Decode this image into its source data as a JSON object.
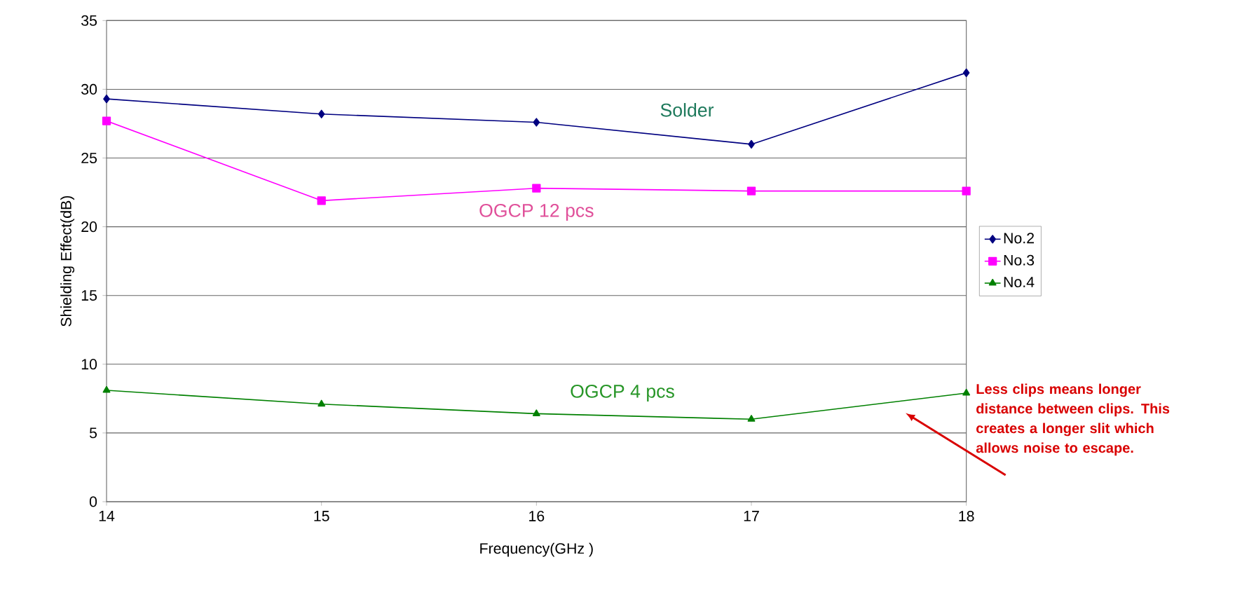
{
  "chart_data": {
    "type": "line",
    "xlabel": "Frequency(GHz )",
    "ylabel": "Shielding Effect(dB)",
    "x": [
      14,
      15,
      16,
      17,
      18
    ],
    "series": [
      {
        "name": "No.2",
        "color": "#000080",
        "marker": "diamond",
        "values": [
          29.3,
          28.2,
          27.6,
          26.0,
          31.2
        ]
      },
      {
        "name": "No.3",
        "color": "#ff00ff",
        "marker": "square",
        "values": [
          27.7,
          21.9,
          22.8,
          22.6,
          22.6
        ]
      },
      {
        "name": "No.4",
        "color": "#008000",
        "marker": "triangle",
        "values": [
          8.1,
          7.1,
          6.4,
          6.0,
          7.9
        ]
      }
    ],
    "xlim": [
      14,
      18
    ],
    "xticks": [
      14,
      15,
      16,
      17,
      18
    ],
    "ylim": [
      0,
      35
    ],
    "yticks": [
      0,
      5,
      10,
      15,
      20,
      25,
      30,
      35
    ],
    "grid": "y",
    "legend": "right",
    "line_style": "solid",
    "annotations": [
      "Solder",
      "OGCP 12 pcs",
      "OGCP 4 pcs",
      "Less clips means longer distance between clips. This creates a longer slit which allows noise to escape."
    ]
  }
}
